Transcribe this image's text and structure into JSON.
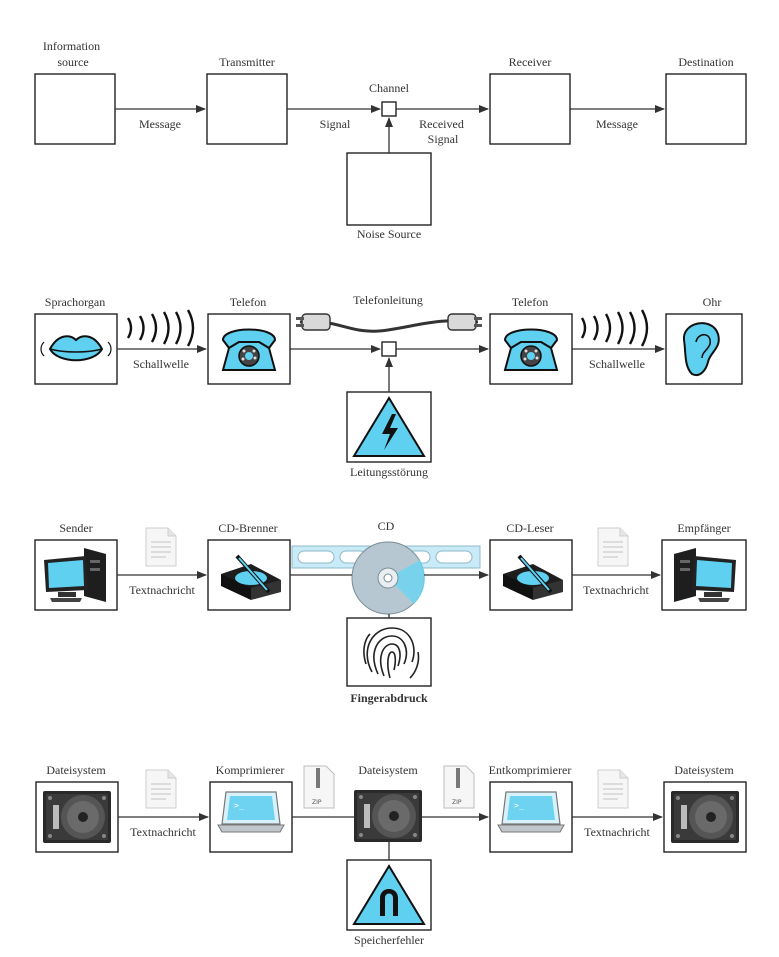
{
  "row1": {
    "source": [
      "Information",
      "source"
    ],
    "transmitter": "Transmitter",
    "channel": "Channel",
    "receiver": "Receiver",
    "destination": "Destination",
    "message_left": "Message",
    "signal": "Signal",
    "received_signal": [
      "Received",
      "Signal"
    ],
    "message_right": "Message",
    "noise": "Noise Source"
  },
  "row2": {
    "source": "Sprachorgan",
    "transmitter": "Telefon",
    "channel": "Telefonleitung",
    "receiver": "Telefon",
    "destination": "Ohr",
    "wave_left": "Schallwelle",
    "wave_right": "Schallwelle",
    "noise": "Leitungsstörung"
  },
  "row3": {
    "source": "Sender",
    "transmitter": "CD-Brenner",
    "channel": "CD",
    "receiver": "CD-Leser",
    "destination": "Empfänger",
    "msg_left": "Textnachricht",
    "msg_right": "Textnachricht",
    "noise": "Fingerabdruck"
  },
  "row4": {
    "source": "Dateisystem",
    "transmitter": "Komprimierer",
    "channel": "Dateisystem",
    "receiver": "Entkomprimierer",
    "destination": "Dateisystem",
    "msg_left": "Textnachricht",
    "msg_right": "Textnachricht",
    "zip_label": "ZIP",
    "noise": "Speicherfehler"
  },
  "colors": {
    "accent": "#5fd0ef",
    "line": "#333333"
  }
}
